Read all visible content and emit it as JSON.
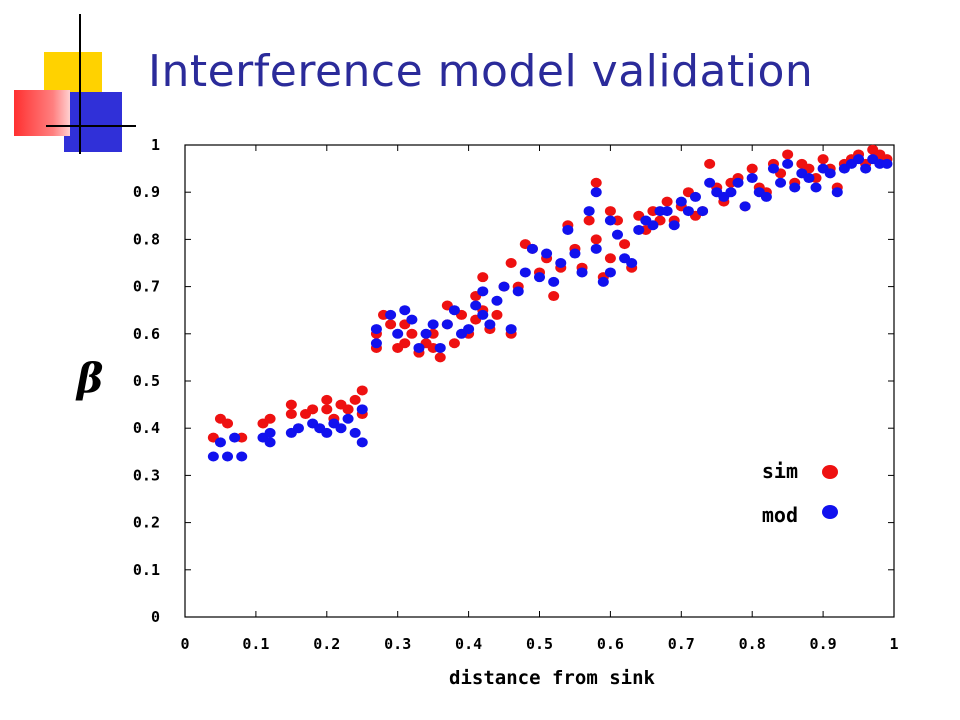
{
  "slide": {
    "title": "Interference model validation"
  },
  "colors": {
    "title": "#2b2b9a",
    "sim": "#ee1111",
    "mod": "#1111ee",
    "deco_yellow": "#ffd200",
    "deco_red": "#ff4040",
    "deco_blue": "#3030d8"
  },
  "chart_data": {
    "type": "scatter",
    "title": "",
    "xlabel": "distance from sink",
    "ylabel": "β",
    "xlim": [
      0,
      1
    ],
    "ylim": [
      0,
      1
    ],
    "x_ticks": [
      "0",
      "0.1",
      "0.2",
      "0.3",
      "0.4",
      "0.5",
      "0.6",
      "0.7",
      "0.8",
      "0.9",
      "1"
    ],
    "y_ticks": [
      "0",
      "0.1",
      "0.2",
      "0.3",
      "0.4",
      "0.5",
      "0.6",
      "0.7",
      "0.8",
      "0.9",
      "1"
    ],
    "grid": false,
    "legend": "bottom-right",
    "series": [
      {
        "name": "sim",
        "color": "#ee1111",
        "points": [
          [
            0.04,
            0.38
          ],
          [
            0.05,
            0.42
          ],
          [
            0.06,
            0.41
          ],
          [
            0.08,
            0.38
          ],
          [
            0.11,
            0.41
          ],
          [
            0.12,
            0.42
          ],
          [
            0.15,
            0.43
          ],
          [
            0.15,
            0.45
          ],
          [
            0.17,
            0.43
          ],
          [
            0.18,
            0.44
          ],
          [
            0.2,
            0.44
          ],
          [
            0.2,
            0.46
          ],
          [
            0.21,
            0.42
          ],
          [
            0.22,
            0.45
          ],
          [
            0.23,
            0.44
          ],
          [
            0.24,
            0.46
          ],
          [
            0.25,
            0.48
          ],
          [
            0.25,
            0.43
          ],
          [
            0.27,
            0.57
          ],
          [
            0.27,
            0.6
          ],
          [
            0.28,
            0.64
          ],
          [
            0.29,
            0.62
          ],
          [
            0.3,
            0.57
          ],
          [
            0.31,
            0.58
          ],
          [
            0.31,
            0.62
          ],
          [
            0.32,
            0.6
          ],
          [
            0.33,
            0.56
          ],
          [
            0.34,
            0.58
          ],
          [
            0.35,
            0.6
          ],
          [
            0.35,
            0.57
          ],
          [
            0.36,
            0.55
          ],
          [
            0.37,
            0.66
          ],
          [
            0.37,
            0.62
          ],
          [
            0.38,
            0.58
          ],
          [
            0.39,
            0.64
          ],
          [
            0.4,
            0.6
          ],
          [
            0.41,
            0.63
          ],
          [
            0.41,
            0.68
          ],
          [
            0.42,
            0.72
          ],
          [
            0.42,
            0.65
          ],
          [
            0.43,
            0.61
          ],
          [
            0.44,
            0.64
          ],
          [
            0.45,
            0.7
          ],
          [
            0.46,
            0.75
          ],
          [
            0.46,
            0.6
          ],
          [
            0.47,
            0.7
          ],
          [
            0.48,
            0.79
          ],
          [
            0.49,
            0.78
          ],
          [
            0.5,
            0.73
          ],
          [
            0.51,
            0.76
          ],
          [
            0.52,
            0.68
          ],
          [
            0.53,
            0.74
          ],
          [
            0.54,
            0.83
          ],
          [
            0.55,
            0.78
          ],
          [
            0.56,
            0.74
          ],
          [
            0.57,
            0.84
          ],
          [
            0.58,
            0.92
          ],
          [
            0.58,
            0.8
          ],
          [
            0.59,
            0.72
          ],
          [
            0.6,
            0.86
          ],
          [
            0.6,
            0.76
          ],
          [
            0.61,
            0.84
          ],
          [
            0.62,
            0.79
          ],
          [
            0.63,
            0.74
          ],
          [
            0.64,
            0.85
          ],
          [
            0.65,
            0.82
          ],
          [
            0.66,
            0.86
          ],
          [
            0.67,
            0.84
          ],
          [
            0.68,
            0.88
          ],
          [
            0.69,
            0.84
          ],
          [
            0.7,
            0.87
          ],
          [
            0.71,
            0.9
          ],
          [
            0.72,
            0.85
          ],
          [
            0.73,
            0.86
          ],
          [
            0.74,
            0.96
          ],
          [
            0.75,
            0.91
          ],
          [
            0.76,
            0.88
          ],
          [
            0.77,
            0.92
          ],
          [
            0.78,
            0.93
          ],
          [
            0.79,
            0.87
          ],
          [
            0.8,
            0.95
          ],
          [
            0.81,
            0.91
          ],
          [
            0.82,
            0.9
          ],
          [
            0.83,
            0.96
          ],
          [
            0.84,
            0.94
          ],
          [
            0.85,
            0.98
          ],
          [
            0.86,
            0.92
          ],
          [
            0.87,
            0.96
          ],
          [
            0.88,
            0.95
          ],
          [
            0.89,
            0.93
          ],
          [
            0.9,
            0.97
          ],
          [
            0.91,
            0.95
          ],
          [
            0.92,
            0.91
          ],
          [
            0.93,
            0.96
          ],
          [
            0.94,
            0.97
          ],
          [
            0.95,
            0.98
          ],
          [
            0.96,
            0.96
          ],
          [
            0.97,
            0.99
          ],
          [
            0.98,
            0.98
          ],
          [
            0.99,
            0.97
          ]
        ]
      },
      {
        "name": "mod",
        "color": "#1111ee",
        "points": [
          [
            0.04,
            0.34
          ],
          [
            0.05,
            0.37
          ],
          [
            0.06,
            0.34
          ],
          [
            0.07,
            0.38
          ],
          [
            0.08,
            0.34
          ],
          [
            0.11,
            0.38
          ],
          [
            0.12,
            0.37
          ],
          [
            0.12,
            0.39
          ],
          [
            0.15,
            0.39
          ],
          [
            0.16,
            0.4
          ],
          [
            0.18,
            0.41
          ],
          [
            0.19,
            0.4
          ],
          [
            0.2,
            0.39
          ],
          [
            0.21,
            0.41
          ],
          [
            0.22,
            0.4
          ],
          [
            0.23,
            0.42
          ],
          [
            0.24,
            0.39
          ],
          [
            0.25,
            0.44
          ],
          [
            0.25,
            0.37
          ],
          [
            0.27,
            0.58
          ],
          [
            0.27,
            0.61
          ],
          [
            0.29,
            0.64
          ],
          [
            0.3,
            0.6
          ],
          [
            0.31,
            0.65
          ],
          [
            0.32,
            0.63
          ],
          [
            0.33,
            0.57
          ],
          [
            0.34,
            0.6
          ],
          [
            0.35,
            0.62
          ],
          [
            0.36,
            0.57
          ],
          [
            0.37,
            0.62
          ],
          [
            0.38,
            0.65
          ],
          [
            0.39,
            0.6
          ],
          [
            0.4,
            0.61
          ],
          [
            0.41,
            0.66
          ],
          [
            0.42,
            0.64
          ],
          [
            0.42,
            0.69
          ],
          [
            0.43,
            0.62
          ],
          [
            0.44,
            0.67
          ],
          [
            0.45,
            0.7
          ],
          [
            0.46,
            0.61
          ],
          [
            0.47,
            0.69
          ],
          [
            0.48,
            0.73
          ],
          [
            0.49,
            0.78
          ],
          [
            0.5,
            0.72
          ],
          [
            0.51,
            0.77
          ],
          [
            0.52,
            0.71
          ],
          [
            0.53,
            0.75
          ],
          [
            0.54,
            0.82
          ],
          [
            0.55,
            0.77
          ],
          [
            0.56,
            0.73
          ],
          [
            0.57,
            0.86
          ],
          [
            0.58,
            0.9
          ],
          [
            0.58,
            0.78
          ],
          [
            0.59,
            0.71
          ],
          [
            0.6,
            0.84
          ],
          [
            0.6,
            0.73
          ],
          [
            0.61,
            0.81
          ],
          [
            0.62,
            0.76
          ],
          [
            0.63,
            0.75
          ],
          [
            0.64,
            0.82
          ],
          [
            0.65,
            0.84
          ],
          [
            0.66,
            0.83
          ],
          [
            0.67,
            0.86
          ],
          [
            0.68,
            0.86
          ],
          [
            0.69,
            0.83
          ],
          [
            0.7,
            0.88
          ],
          [
            0.71,
            0.86
          ],
          [
            0.72,
            0.89
          ],
          [
            0.73,
            0.86
          ],
          [
            0.74,
            0.92
          ],
          [
            0.75,
            0.9
          ],
          [
            0.76,
            0.89
          ],
          [
            0.77,
            0.9
          ],
          [
            0.78,
            0.92
          ],
          [
            0.79,
            0.87
          ],
          [
            0.8,
            0.93
          ],
          [
            0.81,
            0.9
          ],
          [
            0.82,
            0.89
          ],
          [
            0.83,
            0.95
          ],
          [
            0.84,
            0.92
          ],
          [
            0.85,
            0.96
          ],
          [
            0.86,
            0.91
          ],
          [
            0.87,
            0.94
          ],
          [
            0.88,
            0.93
          ],
          [
            0.89,
            0.91
          ],
          [
            0.9,
            0.95
          ],
          [
            0.91,
            0.94
          ],
          [
            0.92,
            0.9
          ],
          [
            0.93,
            0.95
          ],
          [
            0.94,
            0.96
          ],
          [
            0.95,
            0.97
          ],
          [
            0.96,
            0.95
          ],
          [
            0.97,
            0.97
          ],
          [
            0.98,
            0.96
          ],
          [
            0.99,
            0.96
          ]
        ]
      }
    ]
  }
}
